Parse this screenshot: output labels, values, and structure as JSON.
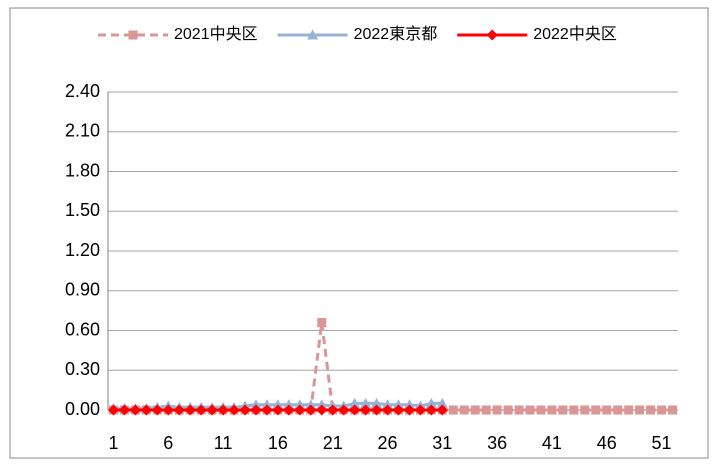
{
  "chart_data": {
    "type": "line",
    "categories": [
      1,
      null,
      null,
      null,
      null,
      6,
      null,
      null,
      null,
      null,
      11,
      null,
      null,
      null,
      null,
      16,
      null,
      null,
      null,
      null,
      21,
      null,
      null,
      null,
      null,
      26,
      null,
      null,
      null,
      null,
      31,
      null,
      null,
      null,
      null,
      36,
      null,
      null,
      null,
      null,
      41,
      null,
      null,
      null,
      null,
      46,
      null,
      null,
      null,
      null,
      51,
      null
    ],
    "series": [
      {
        "name": "2021中央区",
        "color": "#d99694",
        "marker": "square",
        "dashed": true,
        "values": [
          0,
          0,
          0,
          0,
          0,
          0,
          0,
          0,
          0,
          0,
          0,
          0,
          0,
          0,
          0,
          0,
          0,
          0,
          0,
          0.66,
          0,
          0,
          0,
          0,
          0,
          0,
          0,
          0,
          0,
          0,
          0,
          0,
          0,
          0,
          0,
          0,
          0,
          0,
          0,
          0,
          0,
          0,
          0,
          0,
          0,
          0,
          0,
          0,
          0,
          0,
          0,
          0
        ]
      },
      {
        "name": "2022東京都",
        "color": "#95b3d7",
        "marker": "triangle",
        "dashed": false,
        "values": [
          0.01,
          0.01,
          0.01,
          0.01,
          0.02,
          0.03,
          0.02,
          0.02,
          0.02,
          0.02,
          0.02,
          0.02,
          0.03,
          0.04,
          0.04,
          0.04,
          0.04,
          0.04,
          0.04,
          0.04,
          0.03,
          0.03,
          0.05,
          0.05,
          0.05,
          0.04,
          0.04,
          0.04,
          0.03,
          0.05,
          0.05,
          null,
          null,
          null,
          null,
          null,
          null,
          null,
          null,
          null,
          null,
          null,
          null,
          null,
          null,
          null,
          null,
          null,
          null,
          null,
          null,
          null
        ]
      },
      {
        "name": "2022中央区",
        "color": "#ff0000",
        "marker": "diamond",
        "dashed": false,
        "values": [
          0,
          0,
          0,
          0,
          0,
          0,
          0,
          0,
          0,
          0,
          0,
          0,
          0,
          0,
          0,
          0,
          0,
          0,
          0,
          0,
          0,
          0,
          0,
          0,
          0,
          0,
          0,
          0,
          0,
          0,
          0,
          null,
          null,
          null,
          null,
          null,
          null,
          null,
          null,
          null,
          null,
          null,
          null,
          null,
          null,
          null,
          null,
          null,
          null,
          null,
          null,
          null
        ]
      }
    ],
    "ylim": [
      0,
      2.4
    ],
    "yticks": [
      {
        "value": 0,
        "label": "0.00"
      },
      {
        "value": 0.3,
        "label": "0.30"
      },
      {
        "value": 0.6,
        "label": "0.60"
      },
      {
        "value": 0.9,
        "label": "0.90"
      },
      {
        "value": 1.2,
        "label": "1.20"
      },
      {
        "value": 1.5,
        "label": "1.50"
      },
      {
        "value": 1.8,
        "label": "1.80"
      },
      {
        "value": 2.1,
        "label": "2.10"
      },
      {
        "value": 2.4,
        "label": "2.40"
      }
    ],
    "grid": true,
    "legend": "top"
  }
}
